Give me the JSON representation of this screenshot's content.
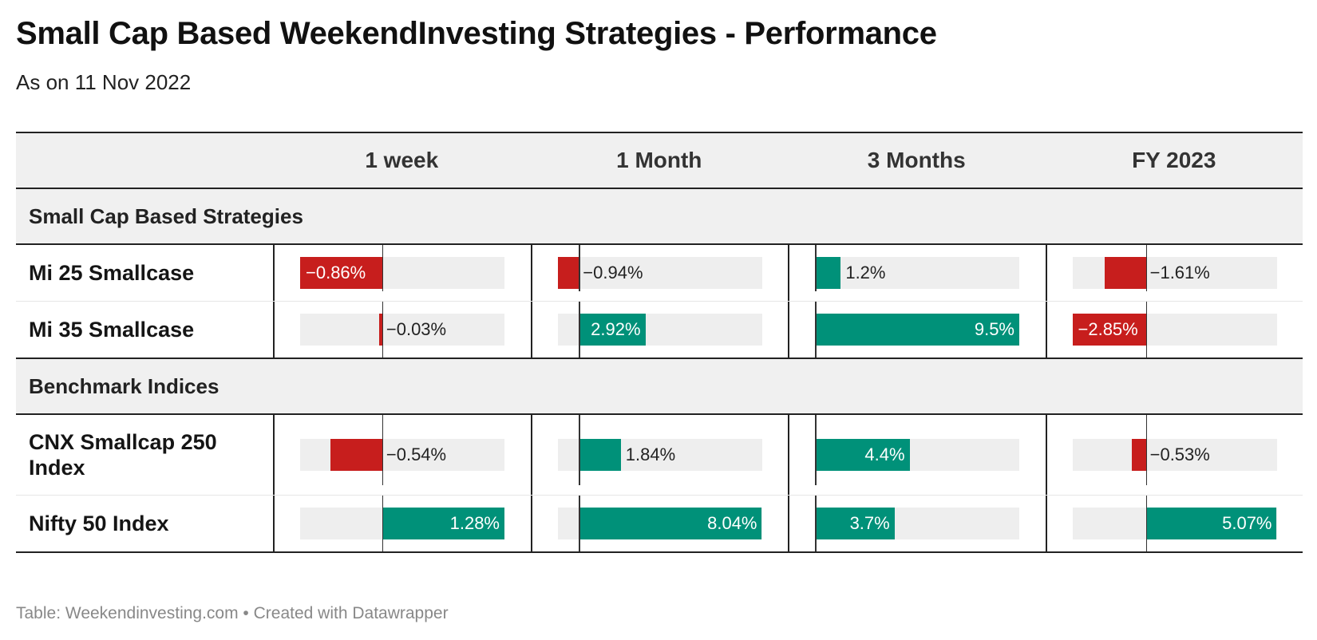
{
  "title": "Small Cap Based WeekendInvesting Strategies - Performance",
  "subtitle": "As on 11 Nov 2022",
  "footer": "Table: Weekendinvesting.com • Created with Datawrapper",
  "colors": {
    "negative": "#c71e1d",
    "positive": "#009179",
    "track": "#eeeeee",
    "header_bg": "#f0f0f0"
  },
  "chart_data": {
    "type": "bar",
    "columns": [
      "1 week",
      "1 Month",
      "3 Months",
      "FY 2023"
    ],
    "groups": [
      {
        "name": "Small Cap Based Strategies",
        "rows": [
          {
            "label": "Mi 25 Smallcase",
            "values": [
              -0.86,
              -0.94,
              1.2,
              -1.61
            ],
            "labels": [
              "−0.86%",
              "−0.94%",
              "1.2%",
              "−1.61%"
            ]
          },
          {
            "label": "Mi 35 Smallcase",
            "values": [
              -0.03,
              2.92,
              9.5,
              -2.85
            ],
            "labels": [
              "−0.03%",
              "2.92%",
              "9.5%",
              "−2.85%"
            ]
          }
        ]
      },
      {
        "name": "Benchmark Indices",
        "rows": [
          {
            "label": "CNX Smallcap 250 Index",
            "values": [
              -0.54,
              1.84,
              4.4,
              -0.53
            ],
            "labels": [
              "−0.54%",
              "1.84%",
              "4.4%",
              "−0.53%"
            ]
          },
          {
            "label": "Nifty 50 Index",
            "values": [
              1.28,
              8.04,
              3.7,
              5.07
            ],
            "labels": [
              "1.28%",
              "8.04%",
              "3.7%",
              "5.07%"
            ]
          }
        ]
      }
    ],
    "column_ranges": [
      [
        -0.86,
        1.28
      ],
      [
        -0.94,
        8.04
      ],
      [
        0,
        9.5
      ],
      [
        -2.85,
        5.07
      ]
    ]
  }
}
